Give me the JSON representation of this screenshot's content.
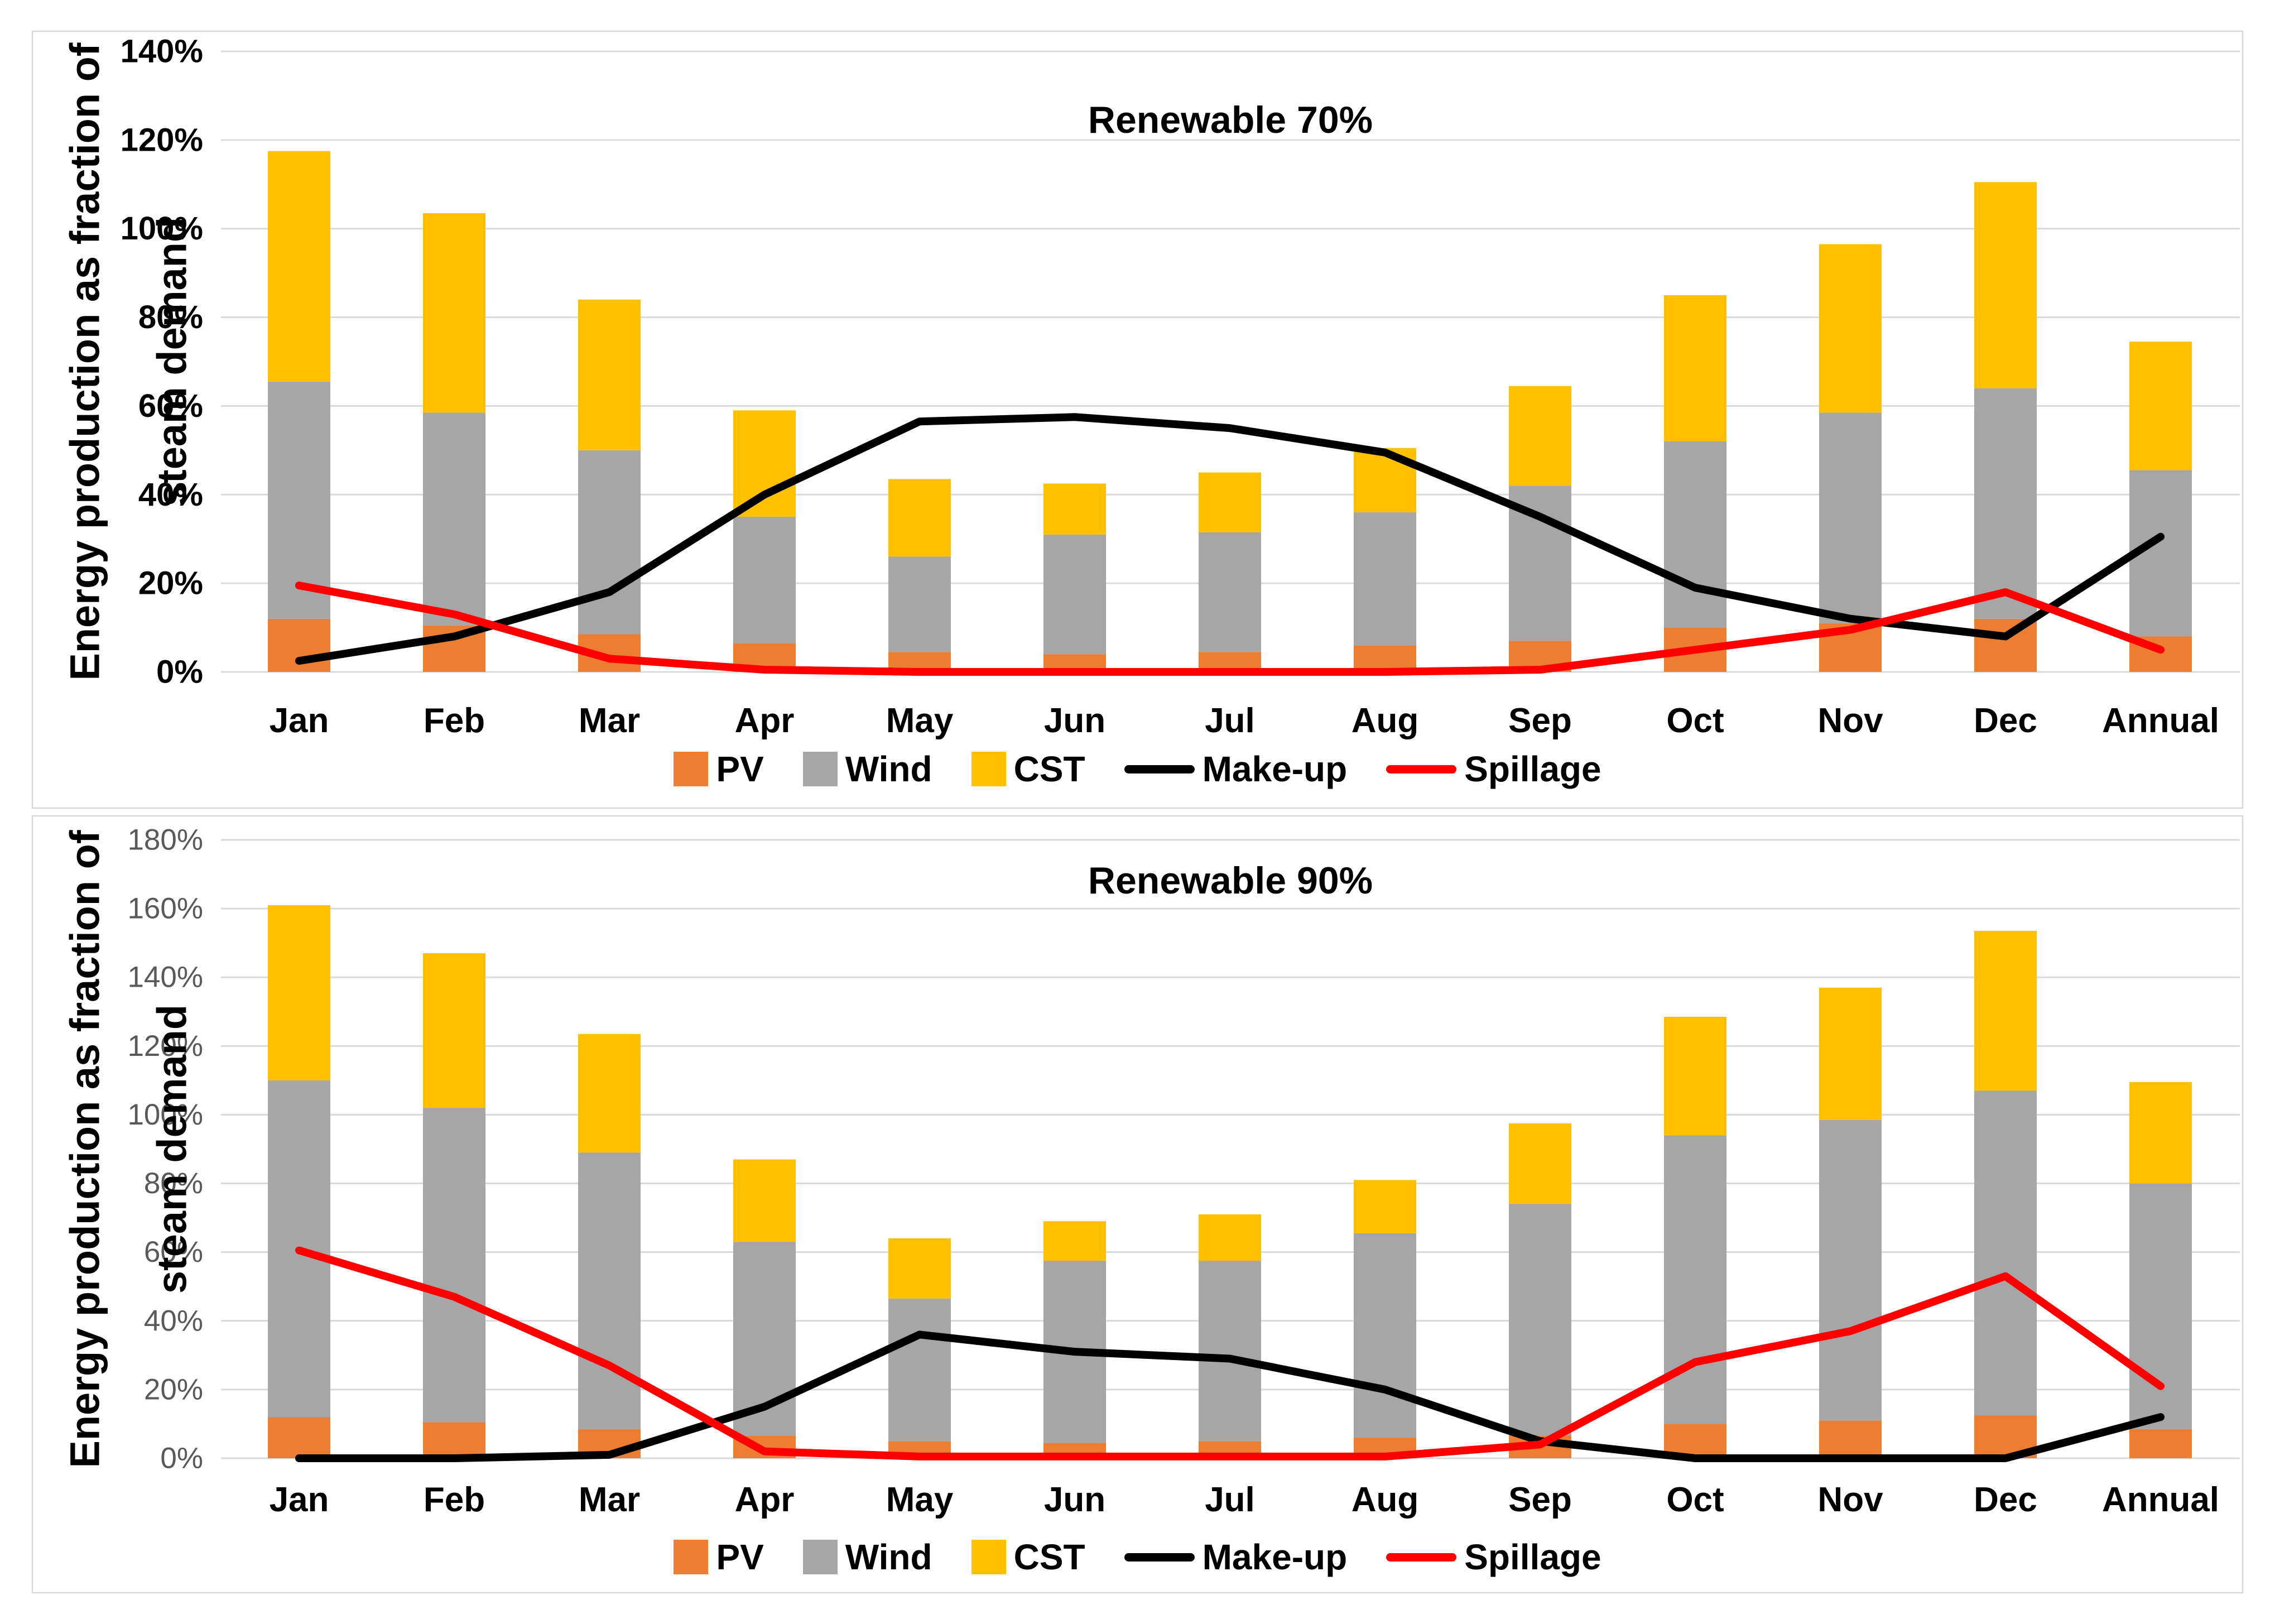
{
  "page": {
    "background": "#FFFFFF",
    "panel_border_color": "#D9D9D9",
    "gridline_color": "#D9D9D9"
  },
  "chart_data": [
    {
      "type": "bar",
      "subtype": "stacked-bars-with-overlay-lines",
      "title": "Renewable 70%",
      "ylabel": "Energy production as fraction of steam demand",
      "ylabel_lines": [
        "Energy production as fraction of",
        "steam demand"
      ],
      "xlabel": "",
      "ylim": [
        0,
        140
      ],
      "ytick_step": 20,
      "ytick_suffix": "%",
      "ytick_color": "#000000",
      "ytick_bold": true,
      "grid": true,
      "legend_position": "bottom",
      "categories": [
        "Jan",
        "Feb",
        "Mar",
        "Apr",
        "May",
        "Jun",
        "Jul",
        "Aug",
        "Sep",
        "Oct",
        "Nov",
        "Dec",
        "Annual"
      ],
      "bar_series": [
        {
          "name": "PV",
          "color": "#ED7D31",
          "values": [
            12,
            10.5,
            8.5,
            6.5,
            4.5,
            4,
            4.5,
            6,
            7,
            10,
            11,
            12,
            8
          ]
        },
        {
          "name": "Wind",
          "color": "#A6A6A6",
          "values": [
            53.5,
            48,
            41.5,
            28.5,
            21.5,
            27,
            27,
            30,
            35,
            42,
            47.5,
            52,
            37.5
          ]
        },
        {
          "name": "CST",
          "color": "#FFC000",
          "values": [
            52,
            45,
            34,
            24,
            17.5,
            11.5,
            13.5,
            14.5,
            22.5,
            33,
            38,
            46.5,
            29
          ]
        }
      ],
      "line_series": [
        {
          "name": "Make-up",
          "color": "#000000",
          "values": [
            2.5,
            8,
            18,
            40,
            56.5,
            57.5,
            55,
            49.5,
            35,
            19,
            12,
            8,
            30.5
          ]
        },
        {
          "name": "Spillage",
          "color": "#FF0000",
          "values": [
            19.5,
            13,
            3,
            0.5,
            0,
            0,
            0,
            0,
            0.5,
            5,
            9.5,
            18,
            5
          ]
        }
      ]
    },
    {
      "type": "bar",
      "subtype": "stacked-bars-with-overlay-lines",
      "title": "Renewable 90%",
      "ylabel": "Energy production as fraction of steam demand",
      "ylabel_lines": [
        "Energy production as fraction of",
        "steam demand"
      ],
      "xlabel": "",
      "ylim": [
        0,
        180
      ],
      "ytick_step": 20,
      "ytick_suffix": "%",
      "ytick_color": "#595959",
      "ytick_bold": false,
      "grid": true,
      "legend_position": "bottom",
      "categories": [
        "Jan",
        "Feb",
        "Mar",
        "Apr",
        "May",
        "Jun",
        "Jul",
        "Aug",
        "Sep",
        "Oct",
        "Nov",
        "Dec",
        "Annual"
      ],
      "bar_series": [
        {
          "name": "PV",
          "color": "#ED7D31",
          "values": [
            12,
            10.5,
            8.5,
            6.5,
            5,
            4.5,
            5,
            6,
            6.5,
            10,
            11,
            12.5,
            8.5
          ]
        },
        {
          "name": "Wind",
          "color": "#A6A6A6",
          "values": [
            98,
            91.5,
            80.5,
            56.5,
            41.5,
            53,
            52.5,
            59.5,
            67.5,
            84,
            87.5,
            94.5,
            71.5
          ]
        },
        {
          "name": "CST",
          "color": "#FFC000",
          "values": [
            51,
            45,
            34.5,
            24,
            17.5,
            11.5,
            13.5,
            15.5,
            23.5,
            34.5,
            38.5,
            46.5,
            29.5
          ]
        }
      ],
      "line_series": [
        {
          "name": "Make-up",
          "color": "#000000",
          "values": [
            0,
            0,
            1,
            15,
            36,
            31,
            29,
            20,
            5,
            0,
            0,
            0,
            12
          ]
        },
        {
          "name": "Spillage",
          "color": "#FF0000",
          "values": [
            60.5,
            47,
            27,
            2,
            0.5,
            0.5,
            0.5,
            0.5,
            4,
            28,
            37,
            53,
            21
          ]
        }
      ]
    }
  ]
}
